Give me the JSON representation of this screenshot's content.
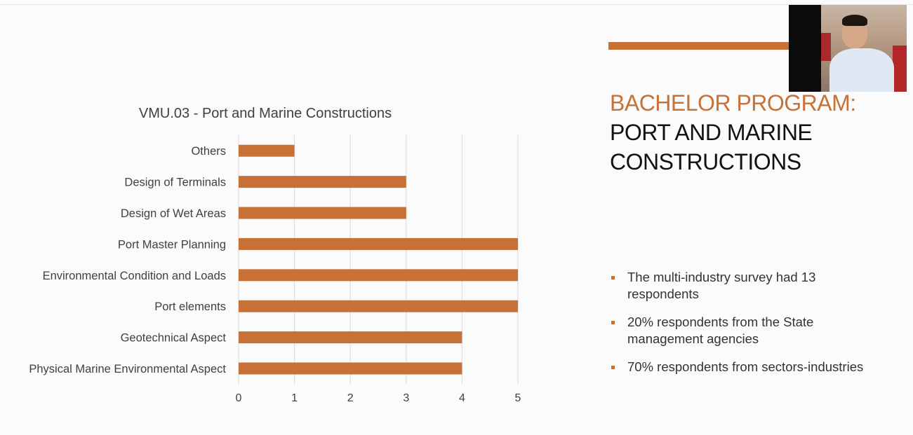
{
  "colors": {
    "accent": "#c87137",
    "bar": "#c87137",
    "grid": "#d9d9d9",
    "text": "#404040"
  },
  "slide": {
    "heading_line1": "BACHELOR PROGRAM:",
    "heading_line2": "PORT AND MARINE",
    "heading_line3": "CONSTRUCTIONS",
    "bullets": [
      "The multi-industry survey had 13 respondents",
      "20% respondents from the State management agencies",
      "70% respondents from sectors-industries"
    ]
  },
  "webcam": {
    "icon": "webcam-video-feed"
  },
  "chart_data": {
    "type": "bar",
    "orientation": "horizontal",
    "title": "VMU.03 - Port and Marine Constructions",
    "xlabel": "",
    "ylabel": "",
    "categories": [
      "Others",
      "Design of Terminals",
      "Design of Wet Areas",
      "Port Master Planning",
      "Environmental Condition and Loads",
      "Port elements",
      "Geotechnical Aspect",
      "Physical Marine Environmental Aspect"
    ],
    "values": [
      1,
      3,
      3,
      5,
      5,
      5,
      4,
      4
    ],
    "xlim": [
      0,
      5
    ],
    "xticks": [
      0,
      1,
      2,
      3,
      4,
      5
    ],
    "grid": true,
    "legend": "none"
  }
}
